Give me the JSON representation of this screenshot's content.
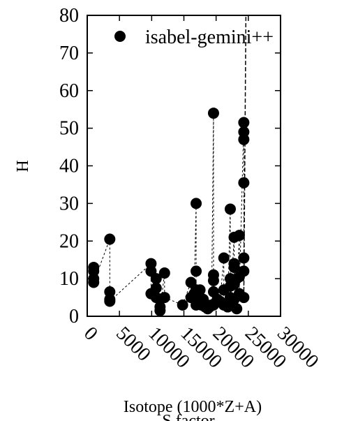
{
  "chart_data": {
    "type": "scatter",
    "xlabel": "Isotope (1000*Z+A)",
    "xlabel_overlap": "S factor",
    "ylabel": "H",
    "xlim": [
      0,
      30000
    ],
    "ylim": [
      0,
      80
    ],
    "xticks": [
      "0",
      "5000",
      "10000",
      "15000",
      "20000",
      "25000",
      "30000"
    ],
    "yticks": [
      "0",
      "10",
      "20",
      "30",
      "40",
      "50",
      "60",
      "70",
      "80"
    ],
    "legend_position": "top-right",
    "grid": false,
    "series": [
      {
        "name": "isabel-gemini++",
        "marker": "filled-circle",
        "line": "dashed",
        "color": "#000000",
        "points": [
          [
            1000,
            13
          ],
          [
            1000,
            12
          ],
          [
            1000,
            10
          ],
          [
            1000,
            9
          ],
          [
            3500,
            20.5
          ],
          [
            3500,
            6.5
          ],
          [
            3500,
            4.5
          ],
          [
            3500,
            4
          ],
          [
            9900,
            14
          ],
          [
            9900,
            12
          ],
          [
            9900,
            6
          ],
          [
            10700,
            10
          ],
          [
            10700,
            7.5
          ],
          [
            10700,
            5
          ],
          [
            11300,
            4.5
          ],
          [
            11300,
            2.5
          ],
          [
            11300,
            1.5
          ],
          [
            12000,
            11.5
          ],
          [
            12000,
            5
          ],
          [
            14800,
            3
          ],
          [
            16100,
            9
          ],
          [
            16100,
            5
          ],
          [
            16600,
            6
          ],
          [
            16900,
            30
          ],
          [
            16900,
            12
          ],
          [
            16900,
            7
          ],
          [
            16900,
            4
          ],
          [
            16900,
            3
          ],
          [
            17500,
            7
          ],
          [
            17500,
            5
          ],
          [
            17700,
            3
          ],
          [
            18000,
            4.5
          ],
          [
            18300,
            2.5
          ],
          [
            18600,
            3
          ],
          [
            18700,
            2
          ],
          [
            19000,
            2.5
          ],
          [
            19300,
            3
          ],
          [
            19600,
            54
          ],
          [
            19600,
            11
          ],
          [
            19600,
            9.5
          ],
          [
            19600,
            6.5
          ],
          [
            19600,
            3
          ],
          [
            20200,
            4.5
          ],
          [
            20600,
            4
          ],
          [
            21200,
            15.5
          ],
          [
            21200,
            7
          ],
          [
            21200,
            3
          ],
          [
            21800,
            2.5
          ],
          [
            22200,
            28.5
          ],
          [
            22200,
            10
          ],
          [
            22200,
            8
          ],
          [
            22200,
            5
          ],
          [
            22200,
            3
          ],
          [
            22800,
            21
          ],
          [
            22800,
            14
          ],
          [
            22800,
            13
          ],
          [
            22800,
            8.5
          ],
          [
            22800,
            4.5
          ],
          [
            23200,
            10
          ],
          [
            23200,
            2
          ],
          [
            23600,
            21.5
          ],
          [
            23600,
            10.5
          ],
          [
            23600,
            6
          ],
          [
            24300,
            51.5
          ],
          [
            24300,
            49
          ],
          [
            24300,
            47
          ],
          [
            24300,
            35.5
          ],
          [
            24300,
            15.5
          ],
          [
            24300,
            12
          ],
          [
            24300,
            5
          ]
        ]
      }
    ]
  }
}
